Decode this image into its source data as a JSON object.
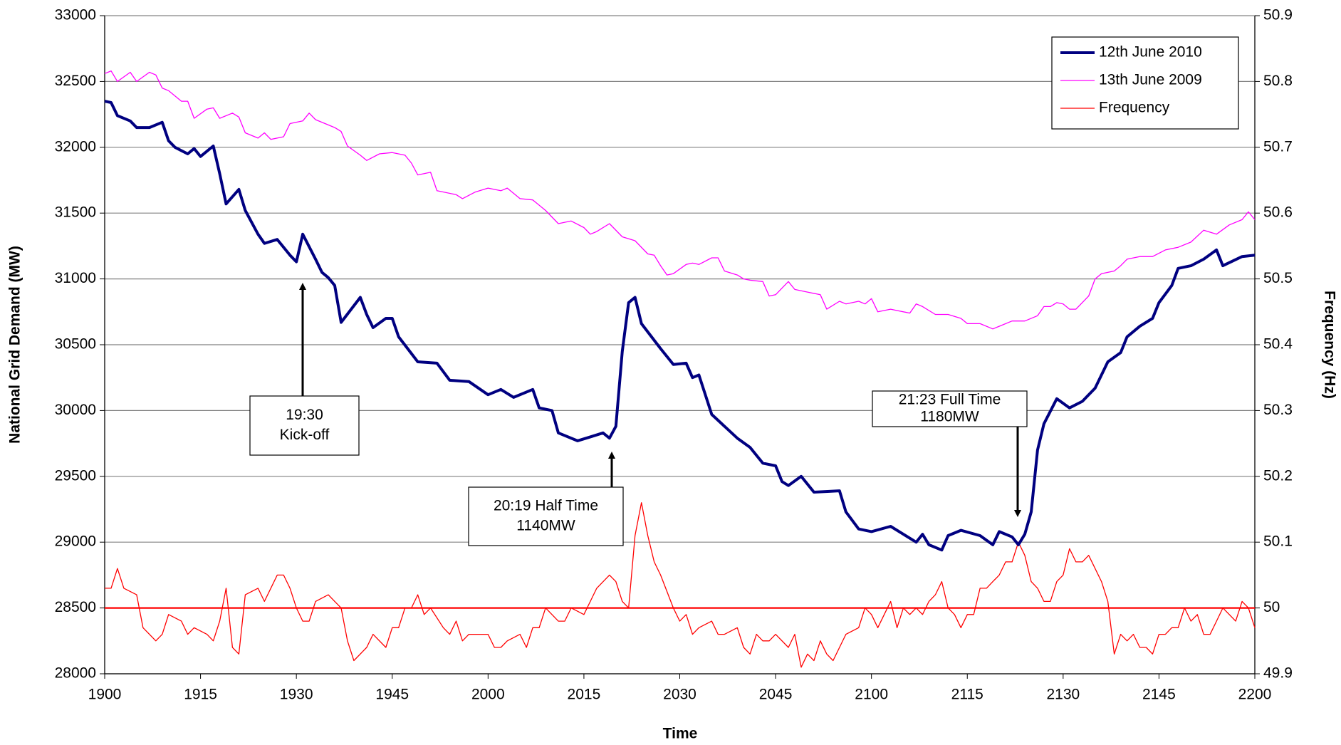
{
  "chart_data": {
    "type": "line",
    "x_label": "Time",
    "y_label": "National Grid Demand (MW)",
    "y2_label": "Frequency (Hz)",
    "xlim": [
      0,
      180
    ],
    "xticks": [
      {
        "value": 0,
        "label": "1900"
      },
      {
        "value": 15,
        "label": "1915"
      },
      {
        "value": 30,
        "label": "1930"
      },
      {
        "value": 45,
        "label": "1945"
      },
      {
        "value": 60,
        "label": "2000"
      },
      {
        "value": 75,
        "label": "2015"
      },
      {
        "value": 90,
        "label": "2030"
      },
      {
        "value": 105,
        "label": "2045"
      },
      {
        "value": 120,
        "label": "2100"
      },
      {
        "value": 135,
        "label": "2115"
      },
      {
        "value": 150,
        "label": "2130"
      },
      {
        "value": 165,
        "label": "2145"
      },
      {
        "value": 180,
        "label": "2200"
      }
    ],
    "ylim": [
      28000,
      33000
    ],
    "yticks": [
      28000,
      28500,
      29000,
      29500,
      30000,
      30500,
      31000,
      31500,
      32000,
      32500,
      33000
    ],
    "y2lim": [
      49.9,
      50.9
    ],
    "y2ticks": [
      49.9,
      50,
      50.1,
      50.2,
      50.3,
      50.4,
      50.5,
      50.6,
      50.7,
      50.8,
      50.9
    ],
    "y2_reference": 50,
    "grid": true,
    "legend": "top-right",
    "series": [
      {
        "name": "12th June 2010",
        "color": "#000080",
        "width": 4,
        "x": [
          0,
          1,
          2,
          4,
          5,
          7,
          9,
          10,
          11,
          13,
          14,
          15,
          17,
          18,
          19,
          21,
          22,
          24,
          25,
          27,
          29,
          30,
          31,
          33,
          34,
          35,
          36,
          37,
          40,
          41,
          42,
          44,
          45,
          46,
          49,
          52,
          54,
          57,
          60,
          62,
          64,
          67,
          68,
          70,
          71,
          74,
          76,
          78,
          79,
          80,
          81,
          82,
          83,
          84,
          87,
          89,
          91,
          92,
          93,
          95,
          99,
          101,
          103,
          105,
          106,
          107,
          109,
          111,
          115,
          116,
          118,
          120,
          123,
          125,
          127,
          128,
          129,
          131,
          132,
          134,
          137,
          139,
          140,
          142,
          143,
          144,
          145,
          146,
          147,
          149,
          151,
          153,
          155,
          157,
          159,
          160,
          162,
          164,
          165,
          167,
          168,
          170,
          172,
          174,
          175,
          178,
          180
        ],
        "values": [
          32350,
          32340,
          32240,
          32200,
          32150,
          32150,
          32190,
          32050,
          32000,
          31950,
          31990,
          31930,
          32010,
          31800,
          31570,
          31680,
          31520,
          31340,
          31270,
          31300,
          31180,
          31130,
          31340,
          31150,
          31050,
          31010,
          30950,
          30670,
          30860,
          30730,
          30630,
          30700,
          30700,
          30560,
          30370,
          30360,
          30230,
          30220,
          30120,
          30160,
          30100,
          30160,
          30020,
          30000,
          29830,
          29770,
          29800,
          29830,
          29790,
          29880,
          30450,
          30820,
          30860,
          30660,
          30470,
          30350,
          30360,
          30250,
          30270,
          29970,
          29790,
          29720,
          29600,
          29580,
          29460,
          29430,
          29500,
          29380,
          29390,
          29230,
          29100,
          29080,
          29120,
          29060,
          29000,
          29060,
          28980,
          28940,
          29050,
          29090,
          29050,
          28980,
          29080,
          29040,
          28980,
          29060,
          29230,
          29700,
          29900,
          30090,
          30020,
          30070,
          30170,
          30370,
          30440,
          30560,
          30640,
          30700,
          30820,
          30950,
          31080,
          31100,
          31150,
          31220,
          31100,
          31170,
          31180
        ]
      },
      {
        "name": "13th June 2009",
        "color": "#ff00ff",
        "width": 1.3,
        "x": [
          0,
          1,
          2,
          4,
          5,
          7,
          8,
          9,
          10,
          12,
          13,
          14,
          16,
          17,
          18,
          20,
          21,
          22,
          24,
          25,
          26,
          28,
          29,
          31,
          32,
          33,
          35,
          36,
          37,
          38,
          40,
          41,
          43,
          45,
          47,
          48,
          49,
          51,
          52,
          55,
          56,
          58,
          60,
          62,
          63,
          65,
          67,
          69,
          71,
          73,
          75,
          76,
          77,
          79,
          81,
          83,
          85,
          86,
          87,
          88,
          89,
          91,
          92,
          93,
          95,
          96,
          97,
          99,
          100,
          101,
          103,
          104,
          105,
          107,
          108,
          110,
          112,
          113,
          115,
          116,
          118,
          119,
          120,
          121,
          123,
          124,
          126,
          127,
          128,
          130,
          132,
          134,
          135,
          137,
          139,
          140,
          142,
          144,
          146,
          147,
          148,
          149,
          150,
          151,
          152,
          154,
          155,
          156,
          158,
          159,
          160,
          162,
          164,
          166,
          168,
          170,
          172,
          174,
          176,
          178,
          179,
          180
        ],
        "values": [
          32560,
          32580,
          32500,
          32570,
          32500,
          32570,
          32550,
          32450,
          32430,
          32350,
          32350,
          32220,
          32290,
          32300,
          32220,
          32260,
          32230,
          32110,
          32070,
          32110,
          32060,
          32080,
          32180,
          32200,
          32260,
          32210,
          32170,
          32150,
          32120,
          32010,
          31940,
          31900,
          31950,
          31960,
          31940,
          31880,
          31790,
          31810,
          31670,
          31640,
          31610,
          31660,
          31690,
          31670,
          31690,
          31610,
          31600,
          31520,
          31420,
          31440,
          31390,
          31340,
          31360,
          31420,
          31320,
          31290,
          31190,
          31180,
          31100,
          31030,
          31040,
          31110,
          31120,
          31110,
          31160,
          31160,
          31060,
          31030,
          31000,
          30990,
          30980,
          30870,
          30880,
          30980,
          30920,
          30900,
          30880,
          30770,
          30830,
          30810,
          30830,
          30810,
          30850,
          30750,
          30770,
          30760,
          30740,
          30810,
          30790,
          30730,
          30730,
          30700,
          30660,
          30660,
          30620,
          30640,
          30680,
          30680,
          30720,
          30790,
          30790,
          30820,
          30810,
          30770,
          30770,
          30870,
          31000,
          31040,
          31060,
          31100,
          31150,
          31170,
          31170,
          31220,
          31240,
          31280,
          31370,
          31340,
          31410,
          31450,
          31510,
          31450
        ]
      },
      {
        "name": "Frequency",
        "color": "#ff0000",
        "width": 1.3,
        "axis": "y2",
        "x": [
          0,
          1,
          2,
          3,
          5,
          6,
          8,
          9,
          10,
          12,
          13,
          14,
          16,
          17,
          18,
          19,
          20,
          21,
          22,
          24,
          25,
          27,
          28,
          29,
          30,
          31,
          32,
          33,
          35,
          36,
          37,
          38,
          39,
          41,
          42,
          44,
          45,
          46,
          47,
          48,
          49,
          50,
          51,
          53,
          54,
          55,
          56,
          57,
          58,
          59,
          60,
          61,
          62,
          63,
          65,
          66,
          67,
          68,
          69,
          71,
          72,
          73,
          75,
          76,
          77,
          79,
          80,
          81,
          82,
          83,
          84,
          85,
          86,
          87,
          89,
          90,
          91,
          92,
          93,
          95,
          96,
          97,
          99,
          100,
          101,
          102,
          103,
          104,
          105,
          107,
          108,
          109,
          110,
          111,
          112,
          113,
          114,
          115,
          116,
          118,
          119,
          120,
          121,
          122,
          123,
          124,
          125,
          126,
          127,
          128,
          129,
          130,
          131,
          132,
          133,
          134,
          135,
          136,
          137,
          138,
          139,
          140,
          141,
          142,
          143,
          144,
          145,
          146,
          147,
          148,
          149,
          150,
          151,
          152,
          153,
          154,
          156,
          157,
          158,
          159,
          160,
          161,
          162,
          163,
          164,
          165,
          166,
          167,
          168,
          169,
          170,
          171,
          172,
          173,
          174,
          175,
          176,
          177,
          178,
          179,
          180
        ],
        "values": [
          50.03,
          50.03,
          50.06,
          50.03,
          50.02,
          49.97,
          49.95,
          49.96,
          49.99,
          49.98,
          49.96,
          49.97,
          49.96,
          49.95,
          49.98,
          50.03,
          49.94,
          49.93,
          50.02,
          50.03,
          50.01,
          50.05,
          50.05,
          50.03,
          50.0,
          49.98,
          49.98,
          50.01,
          50.02,
          50.01,
          50.0,
          49.95,
          49.92,
          49.94,
          49.96,
          49.94,
          49.97,
          49.97,
          50.0,
          50.0,
          50.02,
          49.99,
          50.0,
          49.97,
          49.96,
          49.98,
          49.95,
          49.96,
          49.96,
          49.96,
          49.96,
          49.94,
          49.94,
          49.95,
          49.96,
          49.94,
          49.97,
          49.97,
          50.0,
          49.98,
          49.98,
          50.0,
          49.99,
          50.01,
          50.03,
          50.05,
          50.04,
          50.01,
          50.0,
          50.11,
          50.16,
          50.11,
          50.07,
          50.05,
          50.0,
          49.98,
          49.99,
          49.96,
          49.97,
          49.98,
          49.96,
          49.96,
          49.97,
          49.94,
          49.93,
          49.96,
          49.95,
          49.95,
          49.96,
          49.94,
          49.96,
          49.91,
          49.93,
          49.92,
          49.95,
          49.93,
          49.92,
          49.94,
          49.96,
          49.97,
          50.0,
          49.99,
          49.97,
          49.99,
          50.01,
          49.97,
          50.0,
          49.99,
          50.0,
          49.99,
          50.01,
          50.02,
          50.04,
          50.0,
          49.99,
          49.97,
          49.99,
          49.99,
          50.03,
          50.03,
          50.04,
          50.05,
          50.07,
          50.07,
          50.1,
          50.08,
          50.04,
          50.03,
          50.01,
          50.01,
          50.04,
          50.05,
          50.09,
          50.07,
          50.07,
          50.08,
          50.04,
          50.01,
          49.93,
          49.96,
          49.95,
          49.96,
          49.94,
          49.94,
          49.93,
          49.96,
          49.96,
          49.97,
          49.97,
          50.0,
          49.98,
          49.99,
          49.96,
          49.96,
          49.98,
          50.0,
          49.99,
          49.98,
          50.01,
          50.0,
          49.97
        ]
      }
    ],
    "annotations": [
      {
        "lines": [
          "19:30",
          "Kick-off"
        ]
      },
      {
        "lines": [
          "20:19 Half Time",
          "1140MW"
        ]
      },
      {
        "lines": [
          "21:23 Full Time",
          "1180MW"
        ]
      }
    ]
  }
}
